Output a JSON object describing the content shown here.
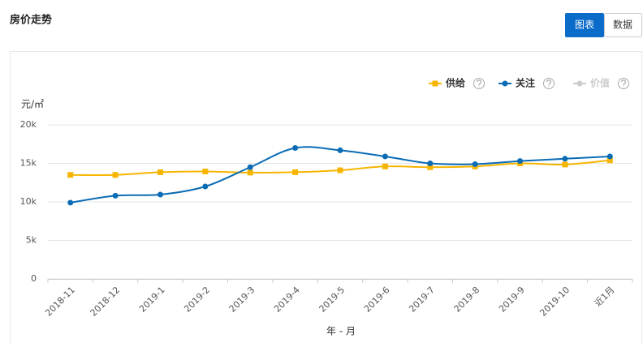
{
  "header": {
    "title": "房价走势",
    "tabs": [
      "图表",
      "数据"
    ]
  },
  "chart_data": {
    "type": "line",
    "y_unit": "元/㎡",
    "xlabel": "年 - 月",
    "categories": [
      "2018-11",
      "2018-12",
      "2019-1",
      "2019-2",
      "2019-3",
      "2019-4",
      "2019-5",
      "2019-6",
      "2019-7",
      "2019-8",
      "2019-9",
      "2019-10",
      "近1月"
    ],
    "series": [
      {
        "name": "供给",
        "color": "#f7b500",
        "values": [
          13500,
          13500,
          13850,
          13950,
          13800,
          13850,
          14100,
          14600,
          14500,
          14600,
          15000,
          14850,
          15400
        ]
      },
      {
        "name": "关注",
        "color": "#0b6cb5",
        "values": [
          9900,
          10800,
          10950,
          12000,
          14500,
          17000,
          16700,
          15900,
          15000,
          14900,
          15300,
          15600,
          15900
        ]
      },
      {
        "name": "价值",
        "color": "#cccccc",
        "values": [
          null,
          null,
          null,
          null,
          null,
          null,
          null,
          null,
          null,
          null,
          null,
          null,
          null
        ]
      }
    ],
    "ylim": [
      0,
      20000
    ],
    "yticks": [
      0,
      {
        "value": 5000,
        "label": "5k"
      },
      {
        "value": 10000,
        "label": "10k"
      },
      {
        "value": 15000,
        "label": "15k"
      },
      {
        "value": 20000,
        "label": "20k"
      }
    ],
    "grid": true,
    "legend": "top-right"
  }
}
